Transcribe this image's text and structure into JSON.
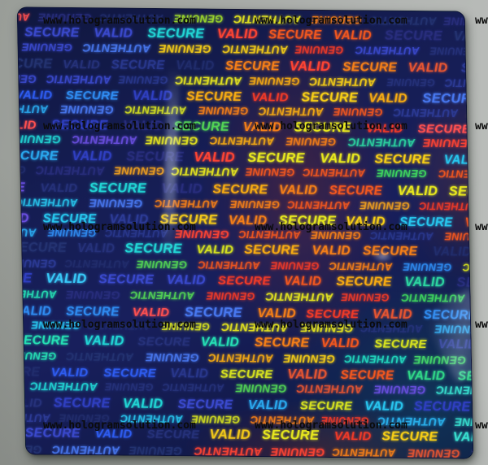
{
  "photo": {
    "background_gray_light": "#bcbfbc",
    "background_gray_dark": "#999d98"
  },
  "watermark": {
    "text": "www.hologramsolution.com",
    "color": "#0b0b0b",
    "grid": {
      "rows": 5,
      "cols": 3
    }
  },
  "sheet": {
    "base_color": "#141c4e",
    "row_count": 29,
    "upright_words": [
      "VALID",
      "SECURE"
    ],
    "flipped_words": [
      "GENUINE",
      "AUTHENTIC"
    ],
    "palettes": {
      "cool": [
        "#2e5cf0",
        "#2f8cf2",
        "#27c6ee",
        "#25e0b4",
        "#3fd95e",
        "#3a49cc",
        "#6a4fe0",
        "#2aa8ee",
        "#2f3fc0",
        "#21d4d4",
        "#4878f0",
        "#38c8f8"
      ],
      "dim": [
        "#27347e",
        "#2b3a92",
        "#222e6e",
        "#2f3f9e",
        "#253574",
        "#2a2f80"
      ],
      "warm": [
        "#f03a28",
        "#f2571f",
        "#f57f18",
        "#f7ab12",
        "#f8cf16",
        "#e8e81e",
        "#ff4433"
      ],
      "mid": [
        "#d4e020",
        "#a0dc2c",
        "#f0a01e",
        "#52d455",
        "#e65532",
        "#2cd4a0",
        "#f2c81a"
      ],
      "teal": [
        "#22dcc0",
        "#30d888",
        "#28c4ee",
        "#38e0d0",
        "#44da6a",
        "#2ab4f0"
      ],
      "accent": [
        "#e83a78",
        "#f03048",
        "#ff5050"
      ]
    }
  }
}
